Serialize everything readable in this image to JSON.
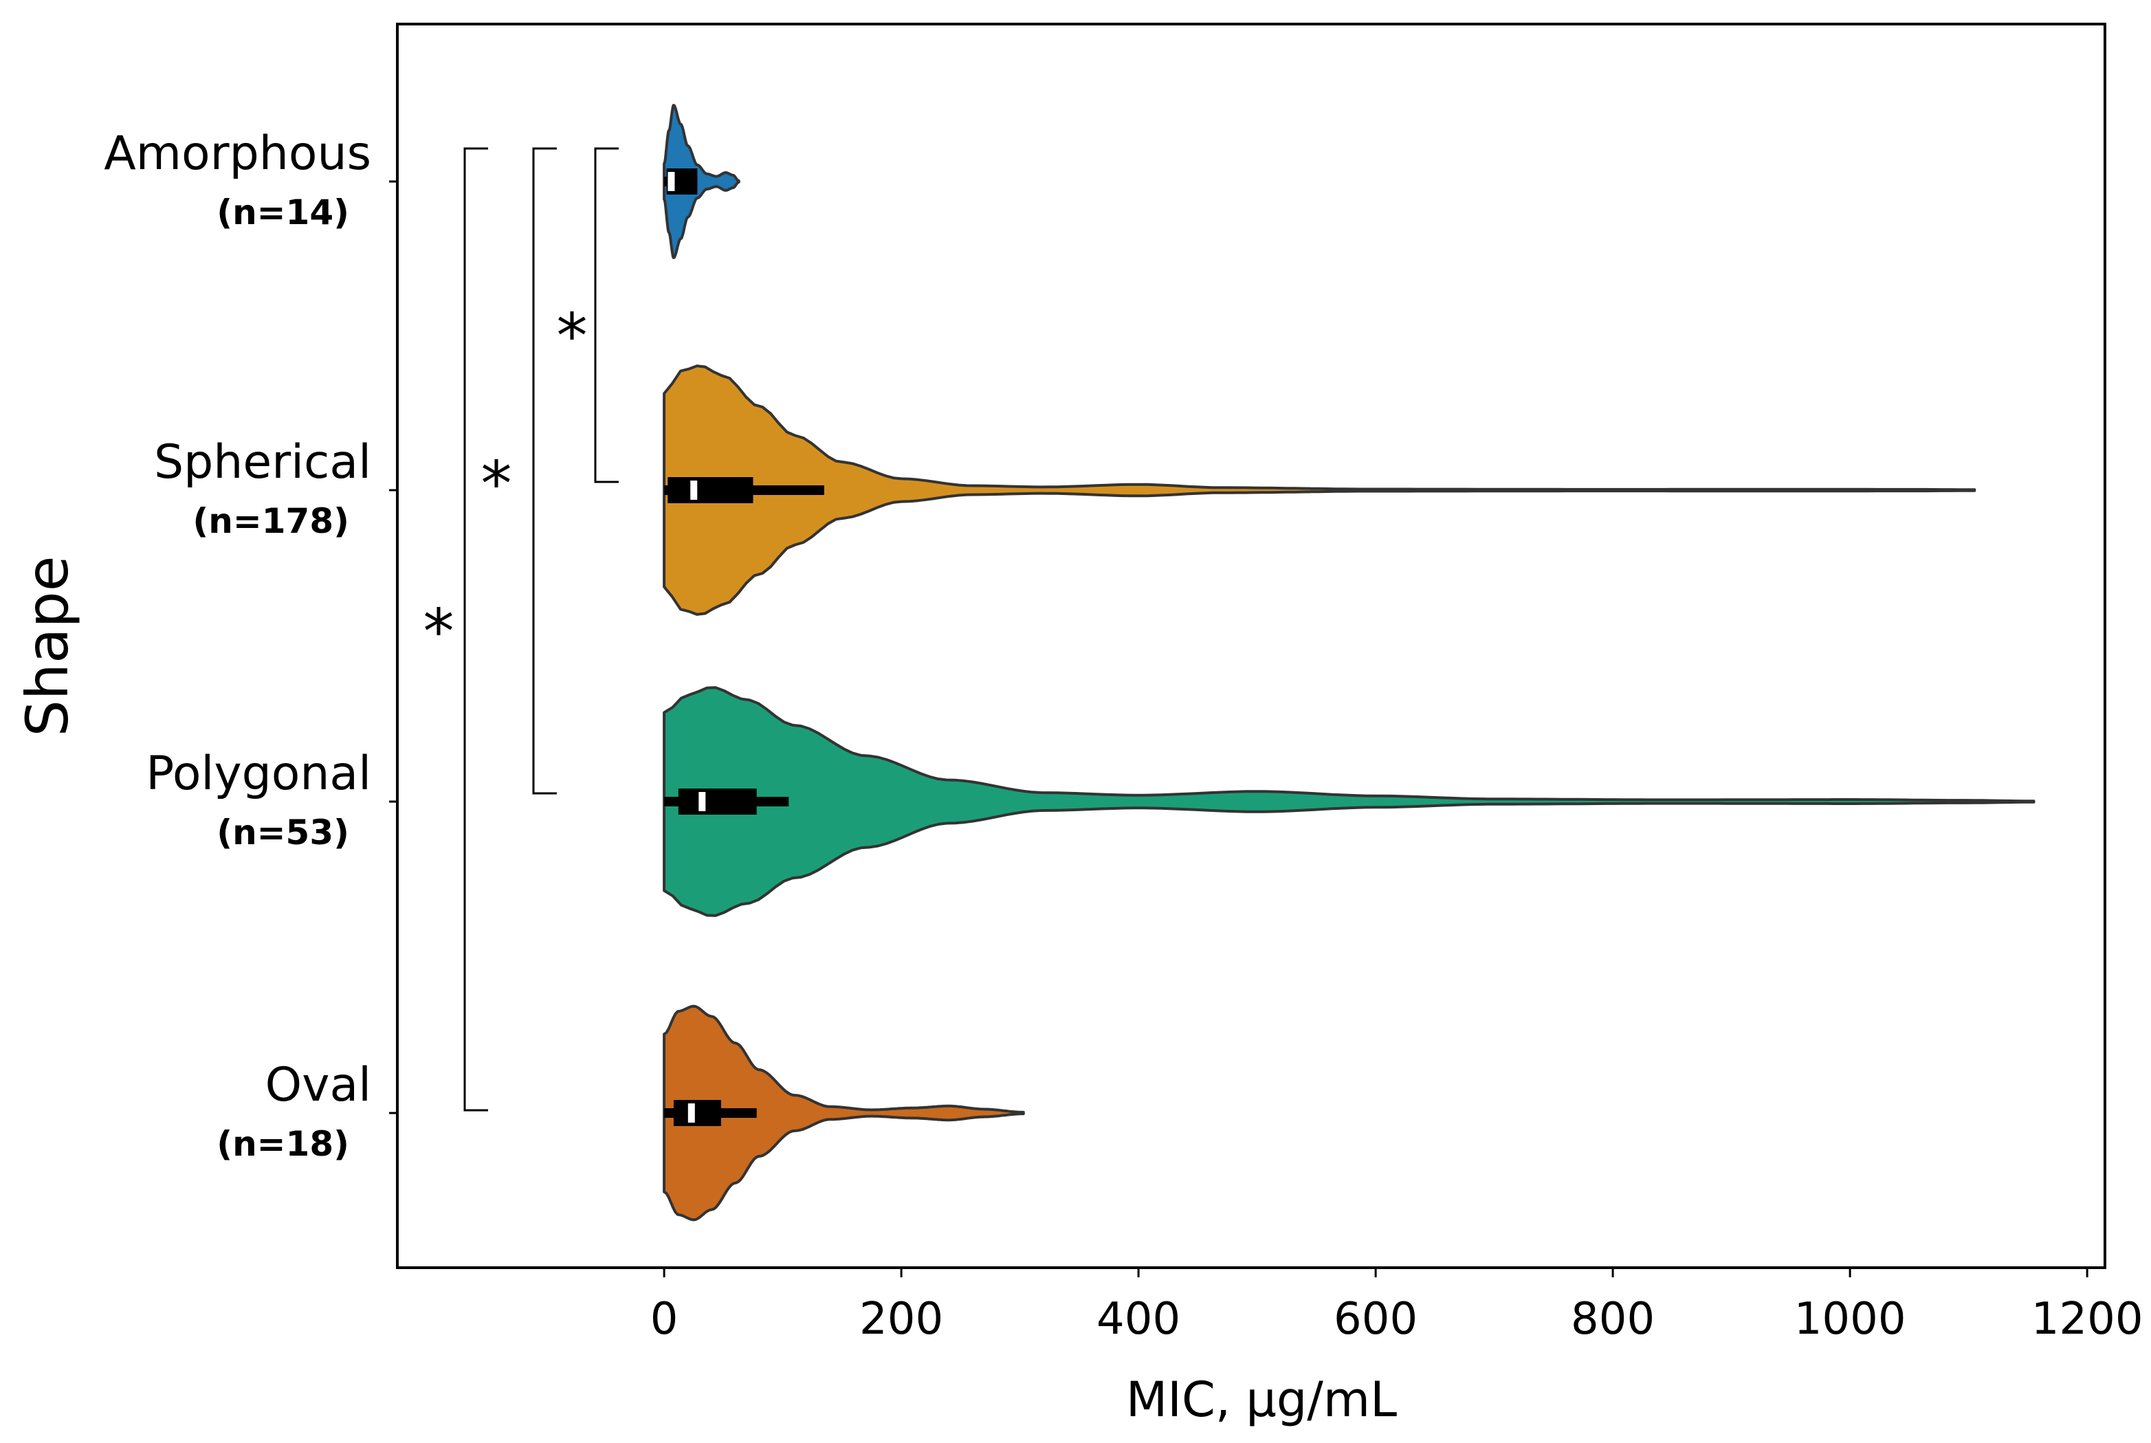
{
  "chart_data": {
    "type": "violin",
    "orientation": "horizontal",
    "xlabel": "MIC, µg/mL",
    "ylabel": "Shape",
    "xlim": [
      -225,
      1215
    ],
    "xticks": [
      0,
      200,
      400,
      600,
      800,
      1000,
      1200
    ],
    "xtick_labels": [
      "0",
      "200",
      "400",
      "600",
      "800",
      "1000",
      "1200"
    ],
    "categories": [
      {
        "name": "Amorphous",
        "n_label": "(n=14)",
        "color": "#1f77b4",
        "min": 0,
        "max": 63,
        "q1": 2,
        "median": 6,
        "q3": 28,
        "whisker_hi": 28,
        "density": [
          [
            0,
            0.14
          ],
          [
            4,
            0.4
          ],
          [
            8,
            0.6
          ],
          [
            14,
            0.45
          ],
          [
            20,
            0.28
          ],
          [
            28,
            0.13
          ],
          [
            36,
            0.06
          ],
          [
            44,
            0.04
          ],
          [
            52,
            0.07
          ],
          [
            58,
            0.05
          ],
          [
            63,
            0.005
          ]
        ]
      },
      {
        "name": "Spherical",
        "n_label": "(n=178)",
        "color": "#d4901f",
        "min": 0,
        "max": 1105,
        "q1": 3,
        "median": 25,
        "q3": 75,
        "whisker_hi": 135,
        "density": [
          [
            0,
            0.76
          ],
          [
            15,
            0.94
          ],
          [
            30,
            0.98
          ],
          [
            50,
            0.9
          ],
          [
            80,
            0.66
          ],
          [
            110,
            0.43
          ],
          [
            150,
            0.22
          ],
          [
            200,
            0.09
          ],
          [
            260,
            0.035
          ],
          [
            320,
            0.025
          ],
          [
            400,
            0.045
          ],
          [
            470,
            0.02
          ],
          [
            600,
            0.008
          ],
          [
            800,
            0.006
          ],
          [
            950,
            0.007
          ],
          [
            1050,
            0.006
          ],
          [
            1105,
            0.004
          ]
        ]
      },
      {
        "name": "Polygonal",
        "n_label": "(n=53)",
        "color": "#1b9e77",
        "min": 0,
        "max": 1155,
        "q1": 12,
        "median": 32,
        "q3": 78,
        "whisker_hi": 105,
        "density": [
          [
            0,
            0.7
          ],
          [
            20,
            0.84
          ],
          [
            40,
            0.9
          ],
          [
            70,
            0.8
          ],
          [
            110,
            0.6
          ],
          [
            170,
            0.36
          ],
          [
            240,
            0.17
          ],
          [
            320,
            0.07
          ],
          [
            400,
            0.05
          ],
          [
            500,
            0.08
          ],
          [
            600,
            0.045
          ],
          [
            700,
            0.02
          ],
          [
            850,
            0.014
          ],
          [
            1000,
            0.016
          ],
          [
            1100,
            0.01
          ],
          [
            1155,
            0.004
          ]
        ]
      },
      {
        "name": "Oval",
        "n_label": "(n=18)",
        "color": "#c96a1e",
        "min": 0,
        "max": 303,
        "q1": 8,
        "median": 23,
        "q3": 48,
        "whisker_hi": 78,
        "density": [
          [
            0,
            0.62
          ],
          [
            12,
            0.8
          ],
          [
            25,
            0.84
          ],
          [
            40,
            0.76
          ],
          [
            60,
            0.55
          ],
          [
            80,
            0.34
          ],
          [
            110,
            0.14
          ],
          [
            140,
            0.05
          ],
          [
            175,
            0.025
          ],
          [
            210,
            0.04
          ],
          [
            240,
            0.055
          ],
          [
            270,
            0.03
          ],
          [
            303,
            0.006
          ]
        ]
      }
    ],
    "significance": [
      {
        "from": "Amorphous",
        "to": "Spherical",
        "label": "*"
      },
      {
        "from": "Amorphous",
        "to": "Polygonal",
        "label": "*"
      },
      {
        "from": "Amorphous",
        "to": "Oval",
        "label": "*"
      }
    ]
  }
}
